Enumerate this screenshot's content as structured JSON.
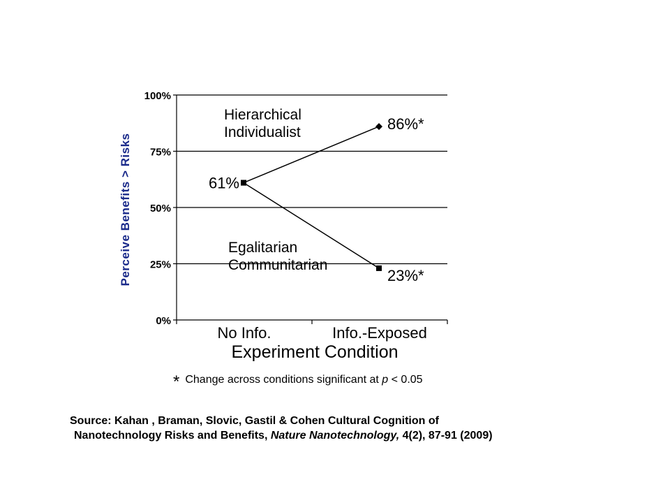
{
  "chart_data": {
    "type": "line",
    "ylabel": "Perceive Benefits > Risks",
    "xlabel": "Experiment Condition",
    "categories": [
      "No Info.",
      "Info.-Exposed"
    ],
    "ylim": [
      0,
      100
    ],
    "yticks": [
      "0%",
      "25%",
      "50%",
      "75%",
      "100%"
    ],
    "ytick_values": [
      0,
      25,
      50,
      75,
      100
    ],
    "grid": true,
    "series": [
      {
        "name": "Hierarchical Individualist",
        "name_lines": [
          "Hierarchical",
          "Individualist"
        ],
        "values": [
          61,
          86
        ],
        "labels": [
          "61%",
          "86%*"
        ],
        "marker": "diamond"
      },
      {
        "name": "Egalitarian Communitarian",
        "name_lines": [
          "Egalitarian",
          "Communitarian"
        ],
        "values": [
          61,
          23
        ],
        "labels": [
          "61%",
          "23%*"
        ],
        "marker": "square"
      }
    ]
  },
  "footnote": {
    "star": "*",
    "text_before": "Change across conditions significant at ",
    "p_symbol": "p",
    "text_after": " < 0.05"
  },
  "source": {
    "line1": "Source: Kahan , Braman, Slovic, Gastil & Cohen Cultural Cognition of",
    "line2_before": "Nanotechnology Risks and Benefits, ",
    "journal": "Nature Nanotechnology,",
    "line2_after": " 4(2), 87-91 (2009)"
  }
}
